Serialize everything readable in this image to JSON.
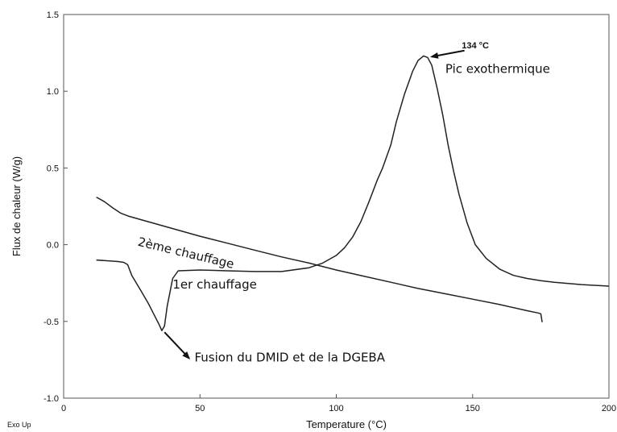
{
  "chart_data": {
    "type": "line",
    "title": "",
    "xlabel": "Temperature (°C)",
    "ylabel": "Flux de chaleur  (W/g)",
    "xlim": [
      0,
      200
    ],
    "ylim": [
      -1.0,
      1.5
    ],
    "xticks": [
      0,
      50,
      100,
      150,
      200
    ],
    "xtick_labels": [
      "0",
      "50",
      "100",
      "150",
      "200"
    ],
    "yticks": [
      -1.0,
      -0.5,
      0.0,
      0.5,
      1.0,
      1.5
    ],
    "ytick_labels": [
      "-1.0",
      "-0.5",
      "0.0",
      "0.5",
      "1.0",
      "1.5"
    ],
    "grid": false,
    "legend": "none",
    "corner_label": "Exo Up",
    "series": [
      {
        "label": "1er chauffage",
        "color": "#222222",
        "x": [
          12,
          20,
          22,
          23.5,
          25,
          28,
          31,
          33,
          35,
          36,
          37,
          38,
          40,
          42,
          50,
          60,
          70,
          80,
          90,
          95,
          100,
          103,
          106,
          109,
          112,
          115,
          117,
          120,
          122,
          125,
          128,
          130,
          132,
          133.5,
          135,
          137,
          139,
          141,
          143,
          145,
          148,
          151,
          155,
          160,
          165,
          170,
          175,
          180,
          190,
          200
        ],
        "y": [
          -0.1,
          -0.11,
          -0.115,
          -0.13,
          -0.2,
          -0.29,
          -0.38,
          -0.45,
          -0.52,
          -0.56,
          -0.53,
          -0.4,
          -0.22,
          -0.17,
          -0.165,
          -0.17,
          -0.175,
          -0.175,
          -0.15,
          -0.12,
          -0.07,
          -0.02,
          0.05,
          0.15,
          0.28,
          0.42,
          0.5,
          0.65,
          0.8,
          0.98,
          1.13,
          1.2,
          1.23,
          1.22,
          1.17,
          1.02,
          0.85,
          0.65,
          0.48,
          0.33,
          0.14,
          0.0,
          -0.09,
          -0.16,
          -0.2,
          -0.22,
          -0.235,
          -0.245,
          -0.26,
          -0.27
        ]
      },
      {
        "label": "2ème chauffage",
        "color": "#222222",
        "x": [
          12,
          15,
          18,
          21,
          24,
          30,
          40,
          50,
          60,
          70,
          80,
          90,
          100,
          110,
          120,
          130,
          140,
          150,
          160,
          170,
          174,
          175,
          175.5
        ],
        "y": [
          0.31,
          0.28,
          0.24,
          0.205,
          0.185,
          0.155,
          0.105,
          0.055,
          0.01,
          -0.035,
          -0.08,
          -0.12,
          -0.165,
          -0.205,
          -0.245,
          -0.285,
          -0.32,
          -0.355,
          -0.39,
          -0.43,
          -0.445,
          -0.45,
          -0.505
        ]
      }
    ],
    "annotations": [
      {
        "text": "2ème chauffage",
        "x": 27,
        "y": -0.005,
        "anchor": "start",
        "rotate": 13.5,
        "style": "annot"
      },
      {
        "text": "1er chauffage",
        "x": 40,
        "y": -0.285,
        "anchor": "start",
        "rotate": 0,
        "style": "annot"
      },
      {
        "text": "Pic exothermique",
        "x": 140,
        "y": 1.12,
        "anchor": "start",
        "rotate": 0,
        "style": "annot"
      },
      {
        "text": "134 °C",
        "x": 146,
        "y": 1.28,
        "anchor": "start",
        "rotate": 0,
        "style": "annot-small"
      },
      {
        "text": "Fusion du DMID et de la DGEBA",
        "x": 48,
        "y": -0.76,
        "anchor": "start",
        "rotate": 0,
        "style": "annot"
      }
    ],
    "arrows": [
      {
        "from": [
          147,
          1.265
        ],
        "to": [
          135,
          1.225
        ]
      },
      {
        "from": [
          37,
          -0.57
        ],
        "to": [
          46,
          -0.74
        ]
      }
    ]
  }
}
